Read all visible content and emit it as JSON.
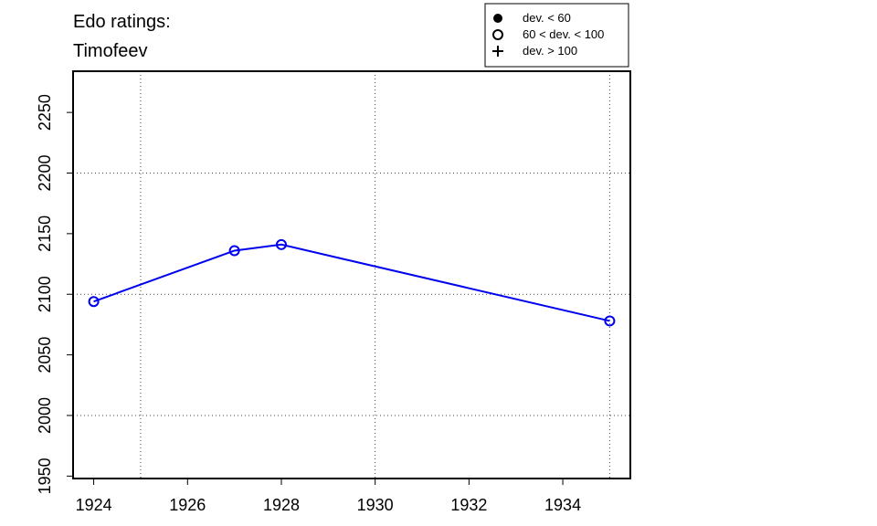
{
  "chart_data": {
    "type": "line",
    "title": "Edo ratings:",
    "subtitle": "Timofeev",
    "x": [
      1924,
      1927,
      1928,
      1935
    ],
    "series": [
      {
        "color": "#0000ee",
        "marker": "open-circle",
        "values": [
          2094,
          2136,
          2141,
          2078
        ]
      }
    ],
    "xlim": [
      1923.56,
      1935.44
    ],
    "ylim": [
      1948,
      2284
    ],
    "xticks": [
      1924,
      1926,
      1928,
      1930,
      1932,
      1934
    ],
    "yticks": [
      1950,
      2000,
      2050,
      2100,
      2150,
      2200,
      2250
    ],
    "xgrid": [
      1925,
      1930,
      1935
    ],
    "ygrid": [
      2000,
      2100,
      2200
    ],
    "legend": {
      "position": "top-right",
      "entries": [
        {
          "label": "dev. < 60",
          "marker": "filled-circle"
        },
        {
          "label": "60 < dev. < 100",
          "marker": "open-circle"
        },
        {
          "label": "dev. > 100",
          "marker": "plus"
        }
      ]
    }
  }
}
